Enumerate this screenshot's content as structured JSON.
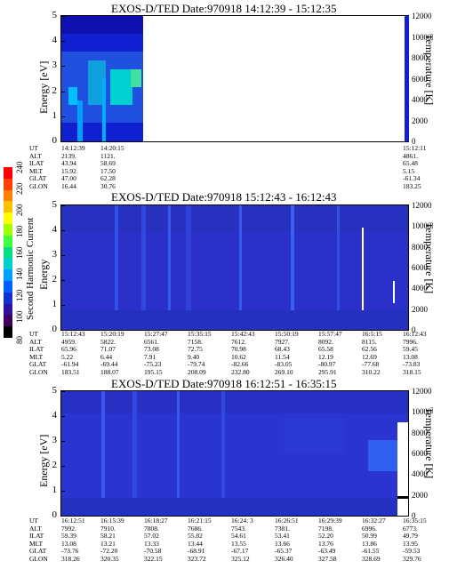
{
  "panels": [
    {
      "title": "EXOS-D/TED   Date:970918   14:12:39 - 15:12:35",
      "ylabel": "Energy [eV]",
      "rlabel": "Temperature [K]",
      "yticks": [
        "5",
        "4",
        "3",
        "2",
        "1",
        "0"
      ],
      "rticks": [
        "12000",
        "10000",
        "8000",
        "6000",
        "4000",
        "2000",
        "0"
      ],
      "times": [
        "14:12:39",
        "14:20:15",
        "",
        "",
        "",
        "",
        "",
        "",
        "15:12:11"
      ],
      "rows": [
        {
          "label": "UT",
          "values": [
            "14:12:39",
            "14:20:15",
            "",
            "",
            "",
            "",
            "",
            "",
            "15:12:11"
          ]
        },
        {
          "label": "ALT",
          "values": [
            "2139.",
            "1121.",
            "",
            "",
            "",
            "",
            "",
            "",
            "4861."
          ]
        },
        {
          "label": "ILAT",
          "values": [
            "43.94",
            "58.69",
            "",
            "",
            "",
            "",
            "",
            "",
            "65.48"
          ]
        },
        {
          "label": "MLT",
          "values": [
            "15.92",
            "17.50",
            "",
            "",
            "",
            "",
            "",
            "",
            "5.15"
          ]
        },
        {
          "label": "GLAT",
          "values": [
            "47.00",
            "62.28",
            "",
            "",
            "",
            "",
            "",
            "",
            "-61.34"
          ]
        },
        {
          "label": "GLON",
          "values": [
            "16.44",
            "30.76",
            "",
            "",
            "",
            "",
            "",
            "",
            "183.25"
          ]
        }
      ]
    },
    {
      "title": "EXOS-D/TED   Date:970918   15:12:43 - 16:12:43",
      "ylabel": "Energy",
      "ylabel2": "Second Harmonic Current",
      "rlabel": "Temperature [K]",
      "yticks": [
        "5",
        "4",
        "3",
        "2",
        "1",
        "0"
      ],
      "rticks": [
        "12000",
        "10000",
        "8000",
        "6000",
        "4000",
        "2000",
        "0"
      ],
      "rows": [
        {
          "label": "UT",
          "values": [
            "15:12:43",
            "15:20:19",
            "15:27:47",
            "15:35:15",
            "15:42:43",
            "15:50:19",
            "15:57:47",
            "16:5:15",
            "16:12:43"
          ]
        },
        {
          "label": "ALT",
          "values": [
            "4959.",
            "5822.",
            "6561.",
            "7158.",
            "7612.",
            "7927.",
            "8092.",
            "8115.",
            "7996."
          ]
        },
        {
          "label": "ILAT",
          "values": [
            "65.96",
            "71.07",
            "73.08",
            "72.75",
            "70.98",
            "68.43",
            "65.58",
            "62.56",
            "59.45"
          ]
        },
        {
          "label": "MLT",
          "values": [
            "5.22",
            "6.44",
            "7.91",
            "9.40",
            "10.62",
            "11.54",
            "12.19",
            "12.69",
            "13.08"
          ]
        },
        {
          "label": "GLAT",
          "values": [
            "-61.94",
            "-69.44",
            "-75.23",
            "-79.74",
            "-82.66",
            "-83.05",
            "-80.97",
            "-77.68",
            "-73.83"
          ]
        },
        {
          "label": "GLON",
          "values": [
            "183.51",
            "188.07",
            "195.15",
            "208.09",
            "232.80",
            "269.10",
            "295.91",
            "310.22",
            "318.15"
          ]
        }
      ]
    },
    {
      "title": "EXOS-D/TED   Date:970918   16:12:51 - 16:35:15",
      "ylabel": "Energy [eV]",
      "rlabel": "Temperature [K]",
      "yticks": [
        "5",
        "4",
        "3",
        "2",
        "1",
        "0"
      ],
      "rticks": [
        "12000",
        "10000",
        "8000",
        "6000",
        "4000",
        "2000",
        "0"
      ],
      "rows": [
        {
          "label": "UT",
          "values": [
            "16:12:51",
            "16:15:39",
            "16:18:27",
            "16:21:15",
            "16:24: 3",
            "16:26:51",
            "16:29:39",
            "16:32:27",
            "16:35:15"
          ]
        },
        {
          "label": "ALT",
          "values": [
            "7992.",
            "7910.",
            "7808.",
            "7686.",
            "7543.",
            "7381.",
            "7198.",
            "6996.",
            "6773."
          ]
        },
        {
          "label": "ILAT",
          "values": [
            "59.39",
            "58.21",
            "57.02",
            "55.82",
            "54.61",
            "53.41",
            "52.20",
            "50.99",
            "49.79"
          ]
        },
        {
          "label": "MLT",
          "values": [
            "13.08",
            "13.21",
            "13.33",
            "13.44",
            "13.55",
            "13.66",
            "13.76",
            "13.86",
            "13.95"
          ]
        },
        {
          "label": "GLAT",
          "values": [
            "-73.76",
            "-72.20",
            "-70.58",
            "-68.91",
            "-67.17",
            "-65.37",
            "-63.49",
            "-61.55",
            "-59.53"
          ]
        },
        {
          "label": "GLON",
          "values": [
            "318.26",
            "320.35",
            "322.15",
            "323.72",
            "325.12",
            "326.40",
            "327.58",
            "328.69",
            "329.76"
          ]
        }
      ]
    }
  ],
  "colorbar": {
    "label": "Second Harmonic Current",
    "ticks": [
      "80",
      "100",
      "120",
      "140",
      "160",
      "180",
      "200",
      "220",
      "240"
    ],
    "colors": [
      "#000000",
      "#400060",
      "#3010a0",
      "#1030d0",
      "#0060ff",
      "#00a0ff",
      "#00d0d0",
      "#00e080",
      "#40ff40",
      "#a0ff00",
      "#ffff00",
      "#ffc000",
      "#ff8000",
      "#ff4000",
      "#ff0000"
    ]
  },
  "chart_data": {
    "type": "heatmap",
    "title": "EXOS-D/TED Date:970918",
    "xlabel": "UT",
    "ylabel": "Energy [eV]",
    "ylim": [
      0,
      5
    ],
    "y2label": "Temperature [K]",
    "y2lim": [
      0,
      12000
    ],
    "colorbar_label": "Second Harmonic Current",
    "colorbar_range": [
      80,
      240
    ],
    "series": [
      {
        "time_range": [
          "14:12:39",
          "15:12:35"
        ],
        "data_covered_until": "14:22:00"
      },
      {
        "time_range": [
          "15:12:43",
          "16:12:43"
        ]
      },
      {
        "time_range": [
          "16:12:51",
          "16:35:15"
        ]
      }
    ]
  }
}
